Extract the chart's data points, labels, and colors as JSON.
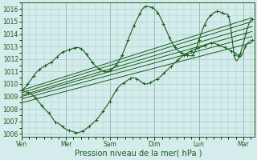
{
  "title": "",
  "xlabel": "Pression niveau de la mer( hPa )",
  "ylabel": "",
  "bg_color": "#d4ecec",
  "grid_color": "#aacaca",
  "line_color": "#1a5c1a",
  "marker_color": "#1a5c1a",
  "yticks": [
    1006,
    1007,
    1008,
    1009,
    1010,
    1011,
    1012,
    1013,
    1014,
    1015,
    1016
  ],
  "xtick_labels": [
    "Ven",
    "Mer",
    "Sam",
    "Dim",
    "Lun",
    "Mar"
  ],
  "xtick_positions": [
    0,
    1,
    2,
    3,
    4,
    5
  ],
  "ylim": [
    1005.8,
    1016.5
  ],
  "xlim": [
    0,
    5.25
  ],
  "xlabel_fontsize": 7,
  "tick_fontsize": 5.5,
  "figsize": [
    3.2,
    2.0
  ],
  "dpi": 100,
  "ensemble_lines": [
    {
      "x": [
        0,
        5.2
      ],
      "y": [
        1009.5,
        1015.3
      ]
    },
    {
      "x": [
        0,
        5.2
      ],
      "y": [
        1009.3,
        1015.0
      ]
    },
    {
      "x": [
        0,
        5.2
      ],
      "y": [
        1009.1,
        1014.6
      ]
    },
    {
      "x": [
        0,
        5.2
      ],
      "y": [
        1009.0,
        1014.2
      ]
    },
    {
      "x": [
        0,
        5.2
      ],
      "y": [
        1008.8,
        1013.8
      ]
    },
    {
      "x": [
        0,
        5.2
      ],
      "y": [
        1008.5,
        1013.3
      ]
    }
  ],
  "main_x": [
    0,
    0.18,
    0.35,
    0.55,
    0.75,
    0.9,
    1.05,
    1.2,
    1.35,
    1.5,
    1.65,
    1.8,
    1.95,
    2.1,
    2.25,
    2.4,
    2.55,
    2.65,
    2.75,
    2.85,
    2.95,
    3.05,
    3.15,
    3.3,
    3.45,
    3.6,
    3.75,
    3.9,
    4.0,
    4.1,
    4.2,
    4.3,
    4.45,
    4.6,
    4.7,
    4.8,
    4.9,
    5.0,
    5.1,
    5.2
  ],
  "main_y": [
    1009.5,
    1010.2,
    1011.0,
    1011.5,
    1012.0,
    1012.5,
    1012.7,
    1012.9,
    1012.8,
    1012.2,
    1011.5,
    1011.1,
    1011.0,
    1011.4,
    1012.2,
    1013.5,
    1014.8,
    1015.5,
    1016.1,
    1016.2,
    1016.1,
    1015.8,
    1015.2,
    1014.0,
    1013.0,
    1012.5,
    1012.3,
    1012.5,
    1013.5,
    1014.5,
    1015.2,
    1015.6,
    1015.8,
    1015.6,
    1015.0,
    1012.3,
    1012.1,
    1013.2,
    1014.5,
    1015.2
  ],
  "bot_x": [
    0,
    0.15,
    0.28,
    0.4,
    0.52,
    0.65,
    0.75,
    0.85,
    0.95,
    1.05,
    1.15,
    1.25,
    1.35,
    1.45,
    1.55,
    1.65,
    1.75,
    1.85,
    1.95,
    2.05,
    2.2,
    2.35,
    2.5,
    2.65,
    2.8,
    2.95,
    3.1,
    3.25,
    3.4,
    3.55,
    3.7,
    3.85,
    4.0,
    4.15,
    4.3,
    4.45,
    4.6,
    4.75,
    4.85,
    4.95,
    5.05,
    5.15,
    5.2
  ],
  "bot_y": [
    1009.5,
    1009.3,
    1009.0,
    1008.5,
    1008.0,
    1007.5,
    1007.0,
    1006.8,
    1006.5,
    1006.3,
    1006.2,
    1006.1,
    1006.2,
    1006.4,
    1006.7,
    1007.0,
    1007.4,
    1007.9,
    1008.4,
    1009.0,
    1009.8,
    1010.2,
    1010.5,
    1010.3,
    1010.0,
    1010.2,
    1010.5,
    1011.0,
    1011.5,
    1012.0,
    1012.4,
    1012.7,
    1012.9,
    1013.1,
    1013.3,
    1013.1,
    1012.9,
    1012.6,
    1012.4,
    1012.2,
    1013.0,
    1013.4,
    1013.5
  ]
}
